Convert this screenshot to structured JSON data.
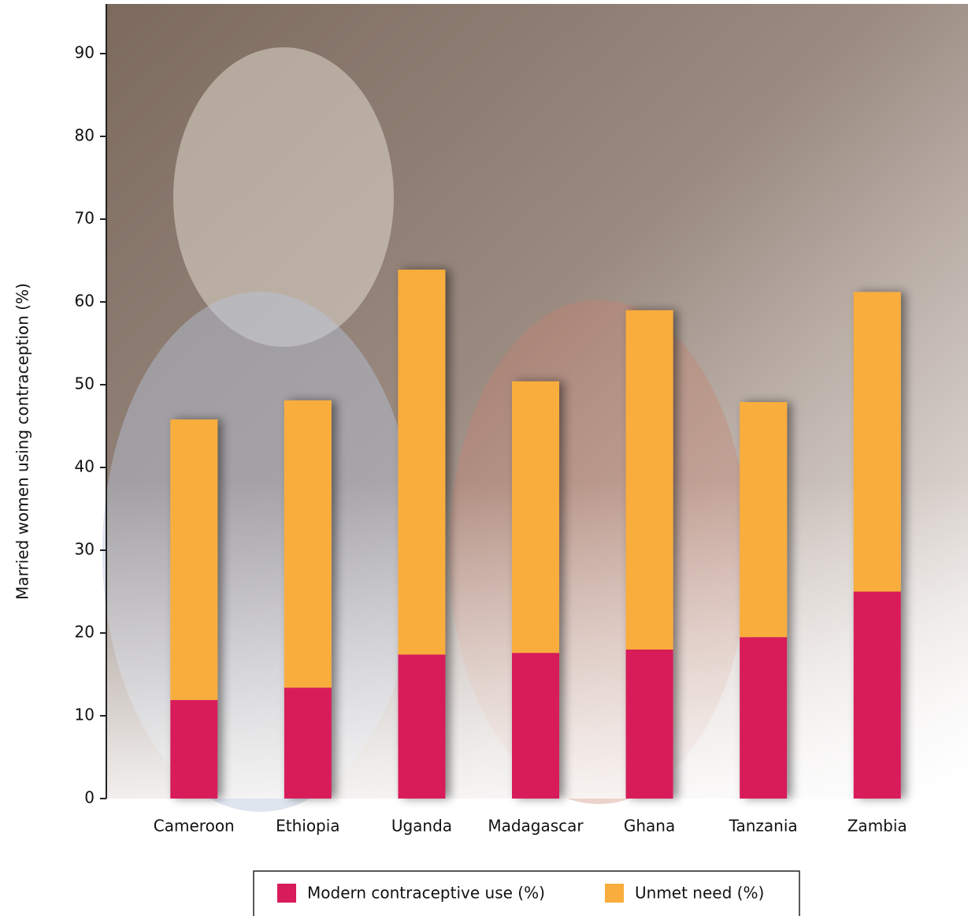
{
  "chart_data": {
    "type": "bar",
    "stacked": true,
    "y_label": "Married women using contraception (%)",
    "categories": [
      "Cameroon",
      "Ethiopia",
      "Uganda",
      "Madagascar",
      "Ghana",
      "Tanzania",
      "Zambia"
    ],
    "series": [
      {
        "name": "Modern contraceptive use (%)",
        "color": "#d81b5a",
        "values": [
          11.9,
          13.4,
          17.4,
          17.6,
          18,
          19.5,
          25
        ]
      },
      {
        "name": "Unmet need (%)",
        "color": "#f9ad3c",
        "values": [
          33.9,
          34.7,
          46.5,
          32.8,
          41,
          28.4,
          36.2
        ]
      }
    ],
    "ylim": [
      0,
      96
    ],
    "yticks": [
      0,
      10,
      20,
      30,
      40,
      50,
      60,
      70,
      80,
      90
    ],
    "legend": "bottom"
  }
}
